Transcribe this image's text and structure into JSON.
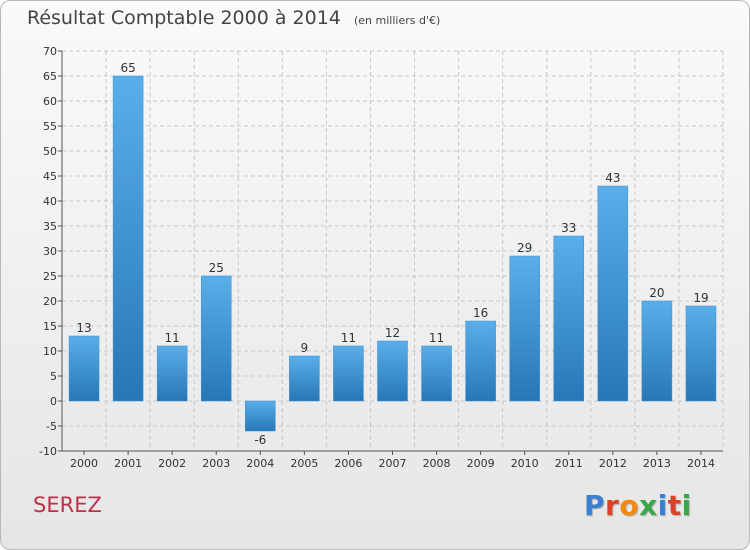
{
  "header": {
    "title": "Résultat Comptable 2000 à 2014",
    "subtitle": "(en milliers d'€)"
  },
  "footer": {
    "commune": "SEREZ",
    "logo": "Proxiti"
  },
  "colors": {
    "bar_top": "#5aaee9",
    "bar_bottom": "#2677b8",
    "commune_text": "#c0304a",
    "logo_letters": [
      "#3a7fd0",
      "#e0402a",
      "#f08a10",
      "#3aa64a",
      "#3a7fd0",
      "#e0402a",
      "#3aa64a"
    ]
  },
  "chart_data": {
    "type": "bar",
    "title": "Résultat Comptable 2000 à 2014",
    "subtitle": "(en milliers d'€)",
    "categories": [
      "2000",
      "2001",
      "2002",
      "2003",
      "2004",
      "2005",
      "2006",
      "2007",
      "2008",
      "2009",
      "2010",
      "2011",
      "2012",
      "2013",
      "2014"
    ],
    "values": [
      13,
      65,
      11,
      25,
      -6,
      9,
      11,
      12,
      11,
      16,
      29,
      33,
      43,
      20,
      19
    ],
    "ylim": [
      -10,
      70
    ],
    "yticks": [
      -10,
      -5,
      0,
      5,
      10,
      15,
      20,
      25,
      30,
      35,
      40,
      45,
      50,
      55,
      60,
      65,
      70
    ],
    "grid": true,
    "data_labels": true
  }
}
